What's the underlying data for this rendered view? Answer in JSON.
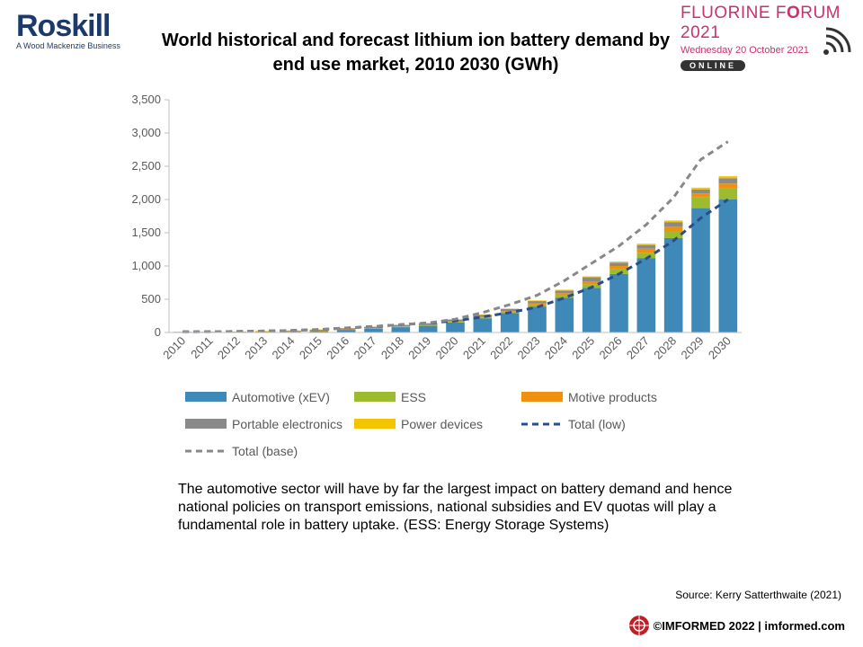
{
  "header": {
    "logo_name": "Roskill",
    "logo_tagline": "A Wood Mackenzie Business",
    "title": "World historical and forecast lithium ion battery demand by end use market, 2010 2030 (GWh)",
    "forum_name_1": "FLUORINE F",
    "forum_name_bold": "O",
    "forum_name_2": "RUM 2021",
    "forum_date": "Wednesday 20 October 2021",
    "forum_online": "ONLINE"
  },
  "description": "The automotive sector will have by far the largest impact on battery demand and hence national policies on transport emissions, national subsidies and EV quotas will play a fundamental role in battery uptake. (ESS: Energy Storage Systems)",
  "source": "Source: Kerry Satterthwaite (2021)",
  "footer": {
    "copyright": "©IMFORMED 2022  | imformed.com"
  },
  "colors": {
    "automotive": "#3f89b8",
    "ess": "#9cbb2f",
    "motive": "#f0900f",
    "portable": "#8a8a8a",
    "power": "#f5c400",
    "total_low": "#2a4d8c",
    "total_base": "#888888",
    "brand": "#1b3a6b",
    "forum": "#c8326e"
  },
  "chart_data": {
    "type": "bar",
    "stacked": true,
    "categories": [
      "2010",
      "2011",
      "2012",
      "2013",
      "2014",
      "2015",
      "2016",
      "2017",
      "2018",
      "2019",
      "2020",
      "2021",
      "2022",
      "2023",
      "2024",
      "2025",
      "2026",
      "2027",
      "2028",
      "2029",
      "2030"
    ],
    "ylim": [
      0,
      3500
    ],
    "yticks": [
      0,
      500,
      1000,
      1500,
      2000,
      2500,
      3000,
      3500
    ],
    "ytick_labels": [
      "0",
      "500",
      "1,000",
      "1,500",
      "2,000",
      "2,500",
      "3,000",
      "3,500"
    ],
    "series": [
      {
        "name": "Automotive (xEV)",
        "key": "automotive",
        "values": [
          1,
          2,
          4,
          6,
          12,
          22,
          40,
          58,
          80,
          100,
          150,
          210,
          290,
          390,
          520,
          670,
          880,
          1120,
          1420,
          1870,
          2000
        ]
      },
      {
        "name": "ESS",
        "key": "ess",
        "values": [
          0,
          0,
          0,
          1,
          1,
          2,
          3,
          4,
          6,
          8,
          10,
          15,
          20,
          30,
          40,
          55,
          70,
          80,
          100,
          160,
          170
        ]
      },
      {
        "name": "Motive products",
        "key": "motive",
        "values": [
          0,
          0,
          0,
          1,
          1,
          2,
          3,
          4,
          5,
          6,
          8,
          10,
          12,
          20,
          30,
          45,
          50,
          60,
          70,
          60,
          70
        ]
      },
      {
        "name": "Portable electronics",
        "key": "portable",
        "values": [
          8,
          9,
          10,
          12,
          14,
          16,
          18,
          20,
          22,
          24,
          26,
          28,
          30,
          32,
          40,
          60,
          50,
          55,
          70,
          60,
          80
        ]
      },
      {
        "name": "Power devices",
        "key": "power",
        "values": [
          1,
          1,
          1,
          2,
          2,
          3,
          3,
          4,
          4,
          5,
          6,
          7,
          8,
          10,
          12,
          14,
          16,
          20,
          24,
          28,
          30
        ]
      }
    ],
    "lines": [
      {
        "name": "Total (low)",
        "key": "total_low",
        "style": "dashed",
        "values": [
          10,
          12,
          15,
          22,
          30,
          45,
          67,
          90,
          117,
          143,
          175,
          235,
          300,
          380,
          520,
          680,
          880,
          1110,
          1380,
          1720,
          2000
        ]
      },
      {
        "name": "Total (base)",
        "key": "total_base",
        "style": "dashed",
        "values": [
          10,
          12,
          15,
          22,
          30,
          45,
          67,
          90,
          117,
          143,
          200,
          300,
          420,
          560,
          780,
          1040,
          1300,
          1620,
          2030,
          2600,
          2870
        ]
      }
    ],
    "legend": [
      {
        "name": "Automotive (xEV)",
        "key": "automotive",
        "kind": "bar"
      },
      {
        "name": "ESS",
        "key": "ess",
        "kind": "bar"
      },
      {
        "name": "Motive products",
        "key": "motive",
        "kind": "bar"
      },
      {
        "name": "Portable electronics",
        "key": "portable",
        "kind": "bar"
      },
      {
        "name": "Power devices",
        "key": "power",
        "kind": "bar"
      },
      {
        "name": "Total (low)",
        "key": "total_low",
        "kind": "line"
      },
      {
        "name": "Total (base)",
        "key": "total_base",
        "kind": "line"
      }
    ],
    "legend_placement": "bottom",
    "grid": false
  }
}
